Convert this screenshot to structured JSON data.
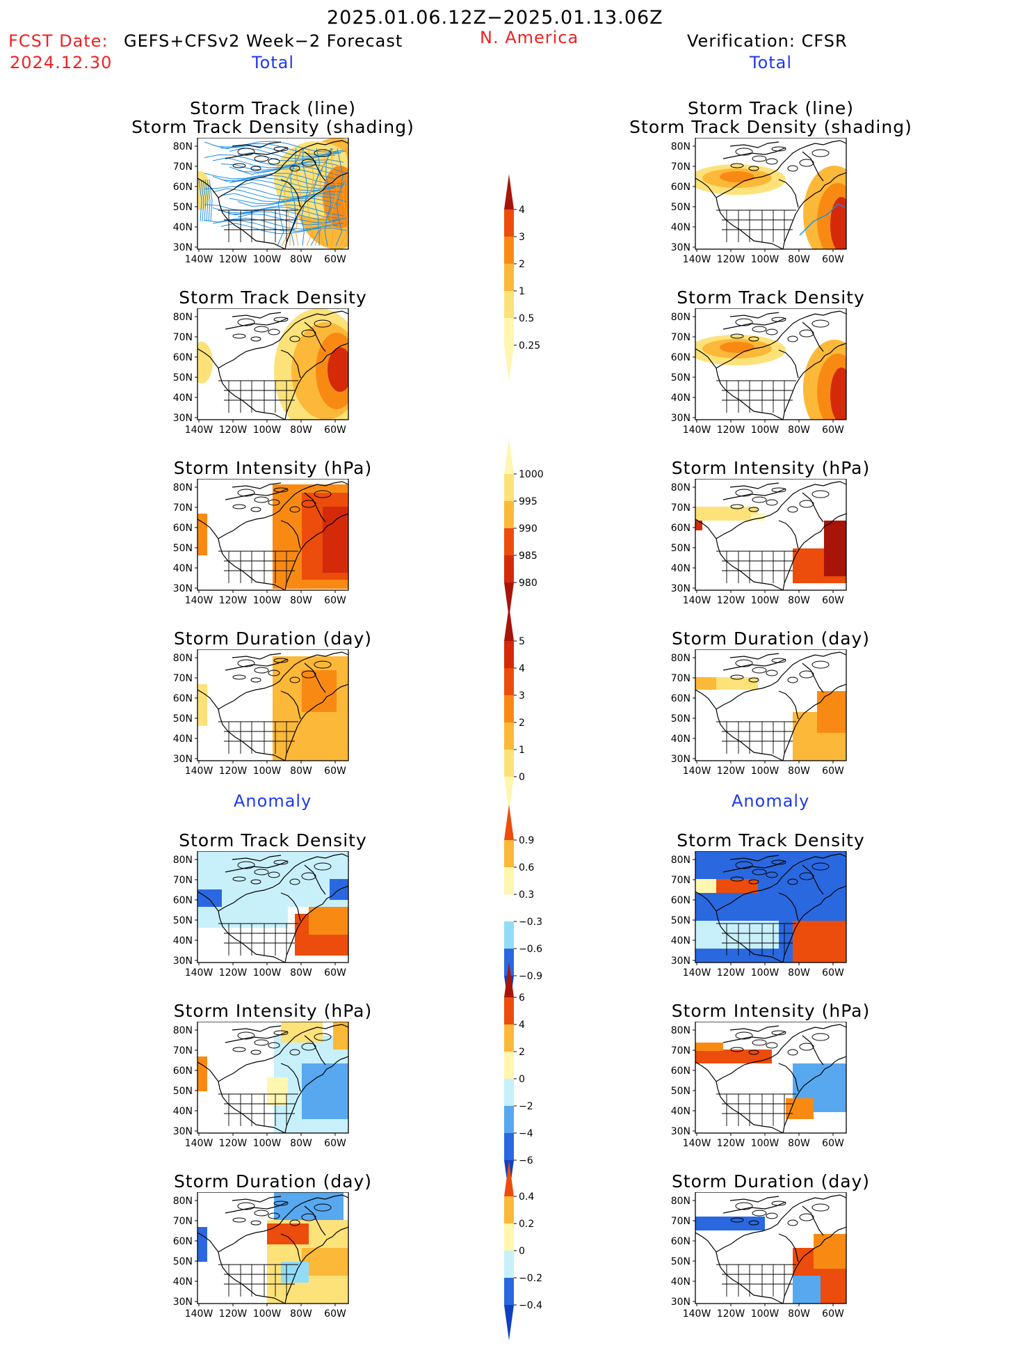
{
  "header": {
    "period": "2025.01.06.12Z−2025.01.13.06Z",
    "fcst_label": "FCST Date:",
    "model": "GEFS+CFSv2 Week−2 Forecast",
    "fcst_date": "2024.12.30",
    "region": "N. America",
    "verification": "Verification: CFSR"
  },
  "sections": {
    "total": "Total",
    "anomaly": "Anomaly"
  },
  "panel_titles": {
    "track": "Storm Track (line)",
    "track_shading": "Storm Track Density (shading)",
    "density": "Storm Track Density",
    "intensity": "Storm Intensity (hPa)",
    "duration": "Storm Duration (day)"
  },
  "axes": {
    "lat": [
      "80N",
      "70N",
      "60N",
      "50N",
      "40N",
      "30N"
    ],
    "lon": [
      "140W",
      "120W",
      "100W",
      "80W",
      "60W"
    ]
  },
  "colorbars": [
    {
      "name": "density-total",
      "labels": [
        "4",
        "3",
        "2",
        "1",
        "0.5",
        "0.25"
      ]
    },
    {
      "name": "intensity-total",
      "labels": [
        "1000",
        "995",
        "990",
        "985",
        "980"
      ]
    },
    {
      "name": "duration-total",
      "labels": [
        "5",
        "4",
        "3",
        "2",
        "1",
        "0"
      ]
    },
    {
      "name": "density-anom",
      "labels": [
        "0.9",
        "0.6",
        "0.3",
        "−0.3",
        "−0.6",
        "−0.9"
      ]
    },
    {
      "name": "intensity-anom",
      "labels": [
        "6",
        "4",
        "2",
        "0",
        "−2",
        "−4",
        "−6"
      ]
    },
    {
      "name": "duration-anom",
      "labels": [
        "0.4",
        "0.2",
        "0",
        "−0.2",
        "−0.4"
      ]
    }
  ],
  "colors": {
    "warm": [
      "#fff6b0",
      "#fde27a",
      "#fcb838",
      "#f88a14",
      "#ec4c0c",
      "#d42a0a",
      "#a81408"
    ],
    "cool": [
      "#c8f0fb",
      "#93dcf7",
      "#58a8f0",
      "#2a68e0",
      "#1040c0"
    ],
    "track_line": "#1f8ee6"
  }
}
